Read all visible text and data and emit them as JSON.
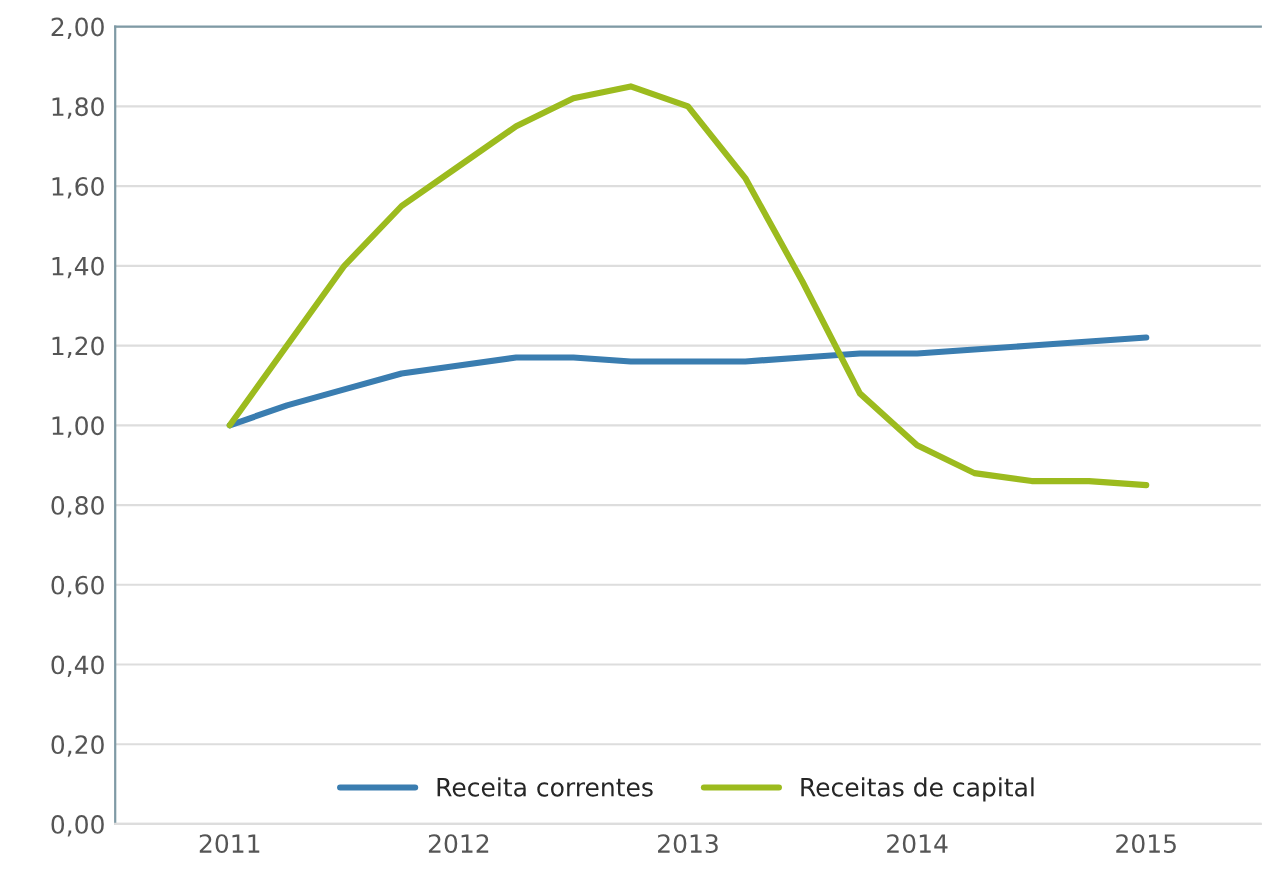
{
  "chart_data": {
    "type": "line",
    "x": [
      2011,
      2011.25,
      2011.5,
      2011.75,
      2012,
      2012.25,
      2012.5,
      2012.75,
      2013,
      2013.25,
      2013.5,
      2013.75,
      2014,
      2014.25,
      2014.5,
      2014.75,
      2015
    ],
    "series": [
      {
        "name": "Receita correntes",
        "color": "#3a7db0",
        "values": [
          1.0,
          1.05,
          1.09,
          1.13,
          1.15,
          1.17,
          1.17,
          1.16,
          1.16,
          1.16,
          1.17,
          1.18,
          1.18,
          1.19,
          1.2,
          1.21,
          1.22
        ]
      },
      {
        "name": "Receitas de capital",
        "color": "#9cbb1e",
        "values": [
          1.0,
          1.2,
          1.4,
          1.55,
          1.65,
          1.75,
          1.82,
          1.85,
          1.8,
          1.62,
          1.36,
          1.08,
          0.95,
          0.88,
          0.86,
          0.86,
          0.85
        ]
      }
    ],
    "xlim": [
      2010.5,
      2015.5
    ],
    "xticks": [
      2011,
      2012,
      2013,
      2014,
      2015
    ],
    "ylim": [
      0,
      2
    ],
    "yticks": [
      {
        "value": 0,
        "label": "0,00"
      },
      {
        "value": 0.2,
        "label": "0,20"
      },
      {
        "value": 0.4,
        "label": "0,40"
      },
      {
        "value": 0.6,
        "label": "0,60"
      },
      {
        "value": 0.8,
        "label": "0,80"
      },
      {
        "value": 1.0,
        "label": "1,00"
      },
      {
        "value": 1.2,
        "label": "1,20"
      },
      {
        "value": 1.4,
        "label": "1,40"
      },
      {
        "value": 1.6,
        "label": "1,60"
      },
      {
        "value": 1.8,
        "label": "1,80"
      },
      {
        "value": 2.0,
        "label": "2,00"
      }
    ],
    "grid": "y",
    "legend": "bottom",
    "marker": "none",
    "line_style": "solid"
  }
}
